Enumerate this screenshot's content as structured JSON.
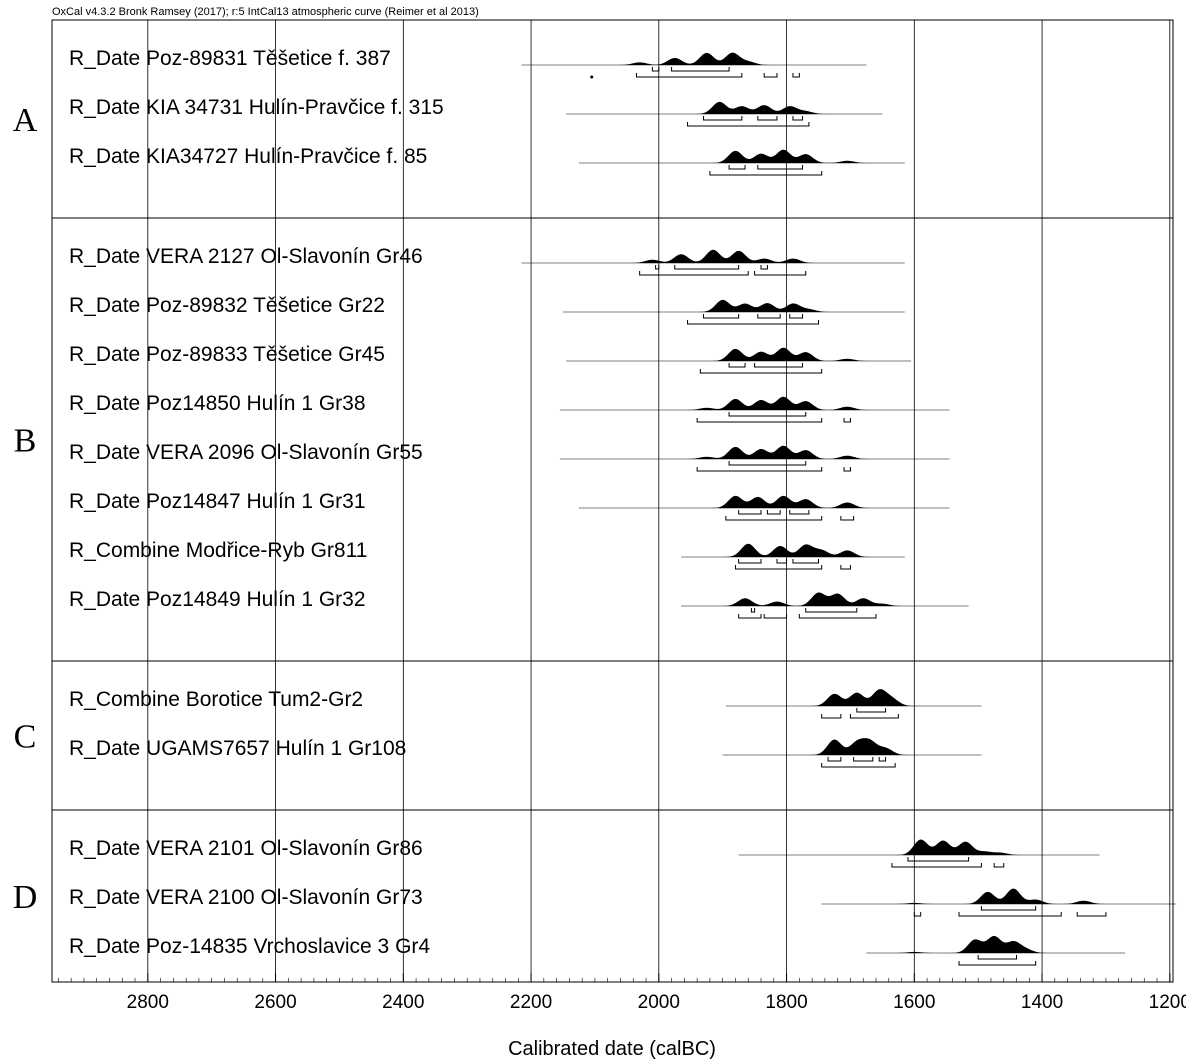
{
  "header": "OxCal v4.3.2 Bronk Ramsey (2017); r:5 IntCal13 atmospheric curve (Reimer et al 2013)",
  "chart_data": {
    "type": "probability-distribution-plot",
    "xlabel": "Calibrated date (calBC)",
    "x_reversed": true,
    "xlim": [
      2950,
      1195
    ],
    "ticks": [
      2800,
      2600,
      2400,
      2200,
      2000,
      1800,
      1600,
      1400,
      1200
    ],
    "minor_tick_step": 20,
    "groups": [
      {
        "label": "A",
        "rows": [
          {
            "name": "R_Date Poz-89831 Těšetice f. 387",
            "range": [
              2215,
              1675
            ],
            "peaks": [
              [
                2030,
                0.12
              ],
              [
                1975,
                0.32
              ],
              [
                1925,
                0.55
              ],
              [
                1885,
                0.55
              ],
              [
                1860,
                0.15
              ]
            ],
            "ranges68": [
              [
                2010,
                2000
              ],
              [
                1980,
                1890
              ]
            ],
            "ranges95": [
              [
                2035,
                1870
              ],
              [
                1835,
                1815
              ],
              [
                1790,
                1780
              ]
            ],
            "dots": [
              2105
            ]
          },
          {
            "name": "R_Date KIA 34731 Hulín-Pravčice f. 315",
            "range": [
              2145,
              1650
            ],
            "peaks": [
              [
                1905,
                0.55
              ],
              [
                1870,
                0.35
              ],
              [
                1835,
                0.4
              ],
              [
                1795,
                0.35
              ],
              [
                1770,
                0.12
              ]
            ],
            "ranges68": [
              [
                1930,
                1870
              ],
              [
                1845,
                1815
              ],
              [
                1790,
                1775
              ]
            ],
            "ranges95": [
              [
                1955,
                1765
              ]
            ]
          },
          {
            "name": "R_Date KIA34727 Hulín-Pravčice f. 85",
            "range": [
              2125,
              1615
            ],
            "peaks": [
              [
                1880,
                0.55
              ],
              [
                1840,
                0.42
              ],
              [
                1805,
                0.6
              ],
              [
                1770,
                0.4
              ],
              [
                1705,
                0.1
              ]
            ],
            "ranges68": [
              [
                1890,
                1865
              ],
              [
                1845,
                1775
              ]
            ],
            "ranges95": [
              [
                1920,
                1745
              ]
            ]
          }
        ]
      },
      {
        "label": "B",
        "rows": [
          {
            "name": "R_Date VERA 2127 Ol-Slavonín Gr46",
            "range": [
              2215,
              1615
            ],
            "peaks": [
              [
                2010,
                0.15
              ],
              [
                1965,
                0.4
              ],
              [
                1915,
                0.6
              ],
              [
                1875,
                0.55
              ],
              [
                1835,
                0.2
              ],
              [
                1790,
                0.2
              ]
            ],
            "ranges68": [
              [
                2005,
                2000
              ],
              [
                1975,
                1875
              ],
              [
                1840,
                1830
              ]
            ],
            "ranges95": [
              [
                2030,
                1860
              ],
              [
                1850,
                1770
              ]
            ]
          },
          {
            "name": "R_Date Poz-89832 Těšetice Gr22",
            "range": [
              2150,
              1615
            ],
            "peaks": [
              [
                1900,
                0.55
              ],
              [
                1865,
                0.38
              ],
              [
                1830,
                0.4
              ],
              [
                1790,
                0.38
              ],
              [
                1765,
                0.12
              ]
            ],
            "ranges68": [
              [
                1930,
                1875
              ],
              [
                1845,
                1810
              ],
              [
                1795,
                1775
              ]
            ],
            "ranges95": [
              [
                1955,
                1750
              ]
            ]
          },
          {
            "name": "R_Date Poz-89833 Těšetice Gr45",
            "range": [
              2145,
              1605
            ],
            "peaks": [
              [
                1880,
                0.55
              ],
              [
                1840,
                0.42
              ],
              [
                1805,
                0.6
              ],
              [
                1770,
                0.4
              ],
              [
                1705,
                0.1
              ]
            ],
            "ranges68": [
              [
                1890,
                1865
              ],
              [
                1850,
                1775
              ]
            ],
            "ranges95": [
              [
                1935,
                1745
              ]
            ]
          },
          {
            "name": "R_Date Poz14850 Hulín 1 Gr38",
            "range": [
              2155,
              1545
            ],
            "peaks": [
              [
                1925,
                0.1
              ],
              [
                1880,
                0.5
              ],
              [
                1840,
                0.45
              ],
              [
                1805,
                0.6
              ],
              [
                1770,
                0.4
              ],
              [
                1705,
                0.15
              ]
            ],
            "ranges68": [
              [
                1890,
                1770
              ]
            ],
            "ranges95": [
              [
                1940,
                1745
              ],
              [
                1710,
                1700
              ]
            ]
          },
          {
            "name": "R_Date VERA 2096 Ol-Slavonín Gr55",
            "range": [
              2155,
              1545
            ],
            "peaks": [
              [
                1925,
                0.1
              ],
              [
                1880,
                0.55
              ],
              [
                1840,
                0.45
              ],
              [
                1805,
                0.6
              ],
              [
                1770,
                0.4
              ],
              [
                1705,
                0.15
              ]
            ],
            "ranges68": [
              [
                1890,
                1770
              ]
            ],
            "ranges95": [
              [
                1940,
                1745
              ],
              [
                1710,
                1700
              ]
            ]
          },
          {
            "name": "R_Date Poz14847 Hulín 1 Gr31",
            "range": [
              2125,
              1545
            ],
            "peaks": [
              [
                1880,
                0.55
              ],
              [
                1845,
                0.5
              ],
              [
                1805,
                0.55
              ],
              [
                1770,
                0.4
              ],
              [
                1705,
                0.25
              ]
            ],
            "ranges68": [
              [
                1875,
                1840
              ],
              [
                1830,
                1810
              ],
              [
                1795,
                1765
              ]
            ],
            "ranges95": [
              [
                1895,
                1745
              ],
              [
                1715,
                1695
              ]
            ]
          },
          {
            "name": "R_Combine Modřice-Ryb Gr811",
            "range": [
              1965,
              1615
            ],
            "peaks": [
              [
                1860,
                0.6
              ],
              [
                1810,
                0.5
              ],
              [
                1770,
                0.55
              ],
              [
                1745,
                0.3
              ],
              [
                1705,
                0.3
              ]
            ],
            "ranges68": [
              [
                1875,
                1840
              ],
              [
                1815,
                1800
              ],
              [
                1790,
                1750
              ]
            ],
            "ranges95": [
              [
                1880,
                1745
              ],
              [
                1715,
                1700
              ]
            ]
          },
          {
            "name": "R_Date Poz14849 Hulín 1 Gr32",
            "range": [
              1965,
              1515
            ],
            "peaks": [
              [
                1865,
                0.35
              ],
              [
                1815,
                0.2
              ],
              [
                1750,
                0.6
              ],
              [
                1720,
                0.55
              ],
              [
                1680,
                0.35
              ],
              [
                1650,
                0.1
              ]
            ],
            "ranges68": [
              [
                1855,
                1850
              ],
              [
                1770,
                1690
              ]
            ],
            "ranges95": [
              [
                1875,
                1840
              ],
              [
                1835,
                1800
              ],
              [
                1780,
                1660
              ]
            ]
          }
        ]
      },
      {
        "label": "C",
        "rows": [
          {
            "name": "R_Combine Borotice Tum2-Gr2",
            "range": [
              1895,
              1495
            ],
            "peaks": [
              [
                1725,
                0.55
              ],
              [
                1690,
                0.6
              ],
              [
                1655,
                0.7
              ],
              [
                1635,
                0.3
              ]
            ],
            "ranges68": [
              [
                1690,
                1645
              ]
            ],
            "ranges95": [
              [
                1745,
                1715
              ],
              [
                1700,
                1625
              ]
            ]
          },
          {
            "name": "R_Date UGAMS7657 Hulín 1 Gr108",
            "range": [
              1900,
              1495
            ],
            "peaks": [
              [
                1725,
                0.7
              ],
              [
                1690,
                0.55
              ],
              [
                1670,
                0.6
              ],
              [
                1645,
                0.3
              ]
            ],
            "ranges68": [
              [
                1735,
                1715
              ],
              [
                1695,
                1665
              ],
              [
                1655,
                1645
              ]
            ],
            "ranges95": [
              [
                1745,
                1630
              ]
            ]
          }
        ]
      },
      {
        "label": "D",
        "rows": [
          {
            "name": "R_Date VERA 2101 Ol-Slavonín Gr86",
            "range": [
              1875,
              1310
            ],
            "peaks": [
              [
                1590,
                0.7
              ],
              [
                1555,
                0.65
              ],
              [
                1520,
                0.6
              ],
              [
                1490,
                0.15
              ],
              [
                1465,
                0.1
              ]
            ],
            "ranges68": [
              [
                1610,
                1515
              ]
            ],
            "ranges95": [
              [
                1635,
                1495
              ],
              [
                1475,
                1460
              ]
            ]
          },
          {
            "name": "R_Date VERA 2100 Ol-Slavonín Gr73",
            "range": [
              1745,
              1190
            ],
            "peaks": [
              [
                1600,
                0.05
              ],
              [
                1485,
                0.55
              ],
              [
                1445,
                0.7
              ],
              [
                1410,
                0.2
              ],
              [
                1335,
                0.15
              ]
            ],
            "ranges68": [
              [
                1495,
                1410
              ]
            ],
            "ranges95": [
              [
                1600,
                1590
              ],
              [
                1530,
                1370
              ],
              [
                1345,
                1300
              ]
            ]
          },
          {
            "name": "R_Date Poz-14835 Vrchoslavice 3 Gr4",
            "range": [
              1675,
              1270
            ],
            "peaks": [
              [
                1600,
                0.05
              ],
              [
                1505,
                0.6
              ],
              [
                1475,
                0.75
              ],
              [
                1445,
                0.5
              ],
              [
                1425,
                0.15
              ]
            ],
            "ranges68": [
              [
                1500,
                1440
              ]
            ],
            "ranges95": [
              [
                1530,
                1410
              ]
            ]
          }
        ]
      }
    ]
  }
}
